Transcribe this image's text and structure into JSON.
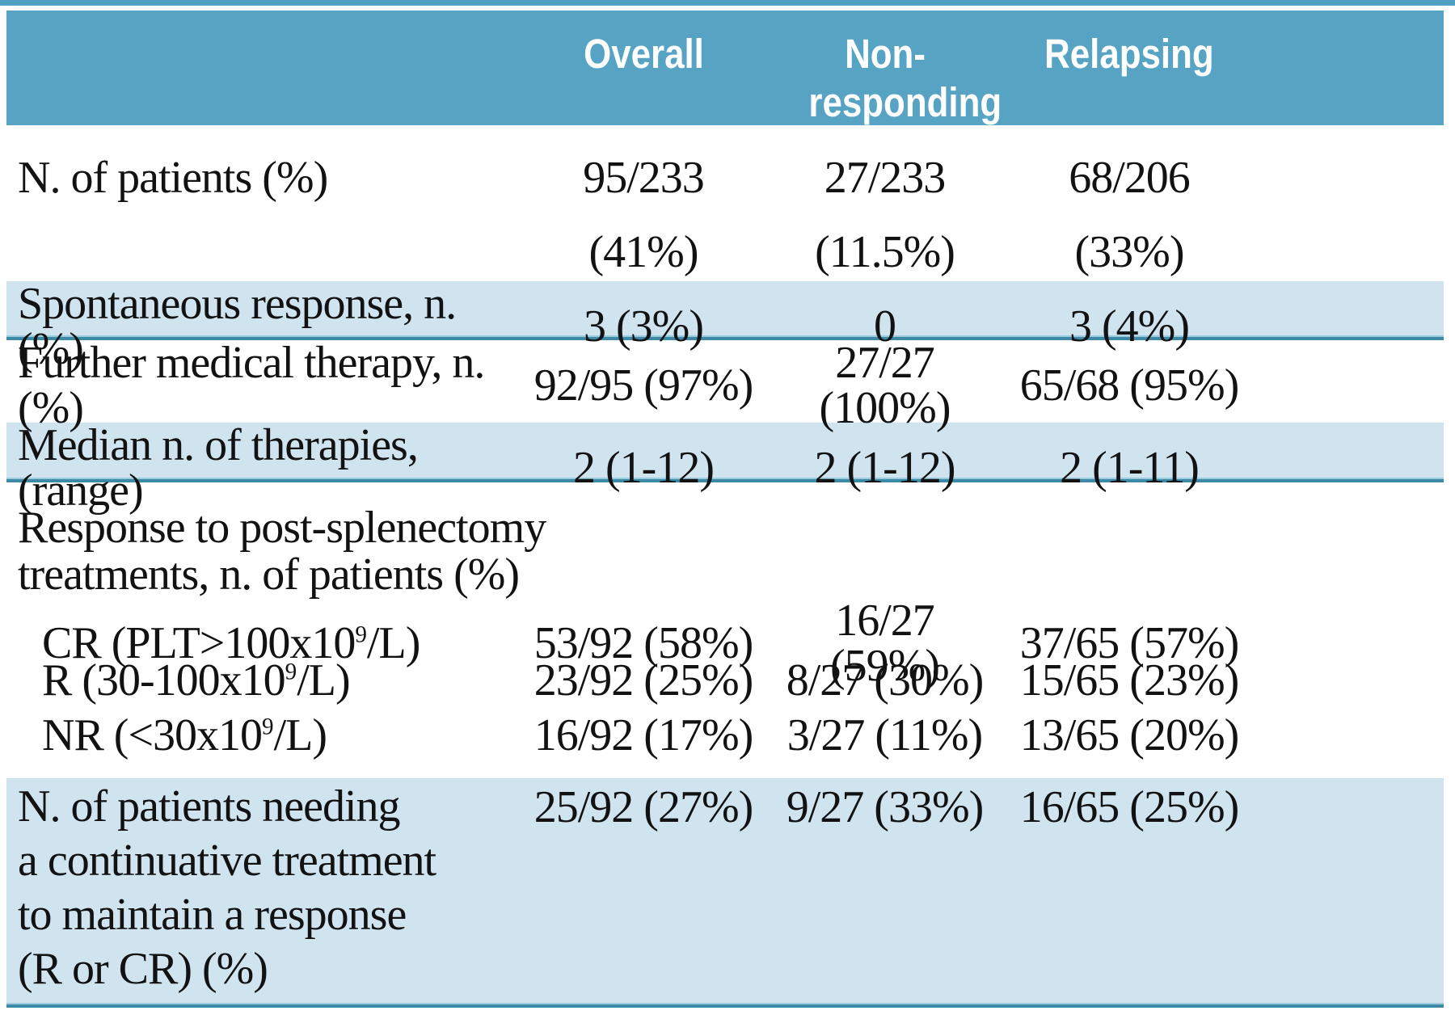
{
  "table": {
    "header": {
      "columns": [
        "Overall",
        "Non-responding",
        "Relapsing"
      ]
    },
    "rows": {
      "patients": {
        "label": "N. of patients (%)",
        "overall_line1": "95/233",
        "overall_line2": "(41%)",
        "nonresponding_line1": "27/233",
        "nonresponding_line2": "(11.5%)",
        "relapsing_line1": "68/206",
        "relapsing_line2": "(33%)"
      },
      "spontaneous": {
        "label": "Spontaneous response, n. (%)",
        "overall": "3 (3%)",
        "nonresponding": "0",
        "relapsing": "3 (4%)"
      },
      "further_therapy": {
        "label": "Further medical therapy, n. (%)",
        "overall": "92/95 (97%)",
        "nonresponding": "27/27 (100%)",
        "relapsing": "65/68 (95%)"
      },
      "median_therapies": {
        "label": "Median n. of therapies, (range)",
        "overall": "2 (1-12)",
        "nonresponding": "2 (1-12)",
        "relapsing": "2 (1-11)"
      },
      "response_section": {
        "label_line1": "Response to post-splenectomy",
        "label_line2": "treatments, n. of patients (%)",
        "cr": {
          "label_pre": "CR (PLT>100x10",
          "label_sup": "9",
          "label_post": "/L)",
          "overall": "53/92 (58%)",
          "nonresponding": "16/27 (59%)",
          "relapsing": "37/65 (57%)"
        },
        "r": {
          "label_pre": "R (30-100x10",
          "label_sup": "9",
          "label_post": "/L)",
          "overall": "23/92 (25%)",
          "nonresponding": "8/27 (30%)",
          "relapsing": "15/65 (23%)"
        },
        "nr": {
          "label_pre": "NR (<30x10",
          "label_sup": "9",
          "label_post": "/L)",
          "overall": "16/92 (17%)",
          "nonresponding": "3/27 (11%)",
          "relapsing": "13/65 (20%)"
        }
      },
      "continuative": {
        "label_line1": "N. of patients needing",
        "label_line2": "a continuative treatment",
        "label_line3": "to maintain a response",
        "label_line4": "(R or CR) (%)",
        "overall": "25/92 (27%)",
        "nonresponding": "9/27 (33%)",
        "relapsing": "16/65 (25%)"
      }
    },
    "colors": {
      "header_bg": "#56a3c4",
      "alt_row_bg": "#cfe4ef",
      "rule": "#3d89a6",
      "header_text": "#ffffff",
      "body_text": "#121212"
    }
  },
  "chart_data": {
    "type": "table",
    "columns": [
      "",
      "Overall",
      "Non-responding",
      "Relapsing"
    ],
    "rows": [
      [
        "N. of patients (%)",
        "95/233 (41%)",
        "27/233 (11.5%)",
        "68/206 (33%)"
      ],
      [
        "Spontaneous response, n. (%)",
        "3 (3%)",
        "0",
        "3 (4%)"
      ],
      [
        "Further medical therapy, n. (%)",
        "92/95 (97%)",
        "27/27 (100%)",
        "65/68 (95%)"
      ],
      [
        "Median n. of therapies, (range)",
        "2 (1-12)",
        "2 (1-12)",
        "2 (1-11)"
      ],
      [
        "Response to post-splenectomy treatments, n. of patients (%)",
        "",
        "",
        ""
      ],
      [
        "CR (PLT>100x10^9/L)",
        "53/92 (58%)",
        "16/27 (59%)",
        "37/65 (57%)"
      ],
      [
        "R (30-100x10^9/L)",
        "23/92 (25%)",
        "8/27 (30%)",
        "15/65 (23%)"
      ],
      [
        "NR (<30x10^9/L)",
        "16/92 (17%)",
        "3/27 (11%)",
        "13/65 (20%)"
      ],
      [
        "N. of patients needing a continuative treatment to maintain a response (R or CR) (%)",
        "25/92 (27%)",
        "9/27 (33%)",
        "16/65 (25%)"
      ]
    ]
  }
}
